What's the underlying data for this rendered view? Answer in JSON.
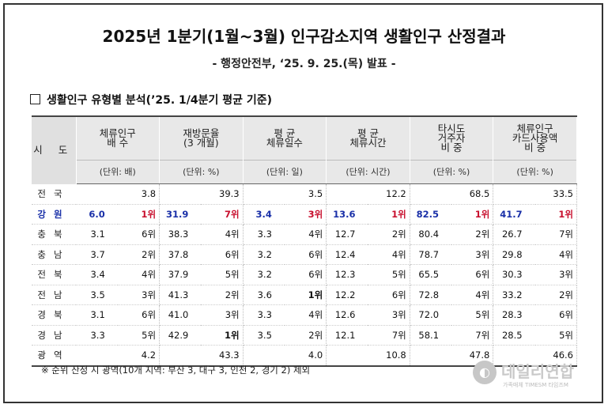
{
  "title": "2025년 1분기(1월~3월) 인구감소지역 생활인구 산정결과",
  "subtitle": "- 행정안전부, ‘25. 9. 25.(목) 발표 -",
  "section": "생활인구 유형별 분석(’25. 1/4분기 평균 기준)",
  "table": {
    "region_header": "시 도",
    "columns": [
      {
        "line1": "체류인구",
        "line2": "배 수",
        "unit": "(단위: 배)"
      },
      {
        "line1": "재방문율",
        "line2": "(3 개월)",
        "unit": "(단위: %)"
      },
      {
        "line1": "평 균",
        "line2": "체류일수",
        "unit": "(단위: 일)"
      },
      {
        "line1": "평 균",
        "line2": "체류시간",
        "unit": "(단위: 시간)"
      },
      {
        "line1": "타시도",
        "line2": "거주자",
        "line3": "비 중",
        "unit": "(단위: %)"
      },
      {
        "line1": "체류인구",
        "line2": "카드사용액",
        "line3": "비 중",
        "unit": "(단위: %)"
      }
    ],
    "rows": [
      {
        "region": "전국",
        "cells": [
          [
            "3.8",
            ""
          ],
          [
            "39.3",
            ""
          ],
          [
            "3.5",
            ""
          ],
          [
            "12.2",
            ""
          ],
          [
            "68.5",
            ""
          ],
          [
            "33.5",
            ""
          ]
        ]
      },
      {
        "region": "강원",
        "cells": [
          [
            "6.0",
            "1위"
          ],
          [
            "31.9",
            "7위"
          ],
          [
            "3.4",
            "3위"
          ],
          [
            "13.6",
            "1위"
          ],
          [
            "82.5",
            "1위"
          ],
          [
            "41.7",
            "1위"
          ]
        ]
      },
      {
        "region": "충북",
        "cells": [
          [
            "3.1",
            "6위"
          ],
          [
            "38.3",
            "4위"
          ],
          [
            "3.3",
            "4위"
          ],
          [
            "12.7",
            "2위"
          ],
          [
            "80.4",
            "2위"
          ],
          [
            "26.7",
            "7위"
          ]
        ]
      },
      {
        "region": "충남",
        "cells": [
          [
            "3.7",
            "2위"
          ],
          [
            "37.8",
            "6위"
          ],
          [
            "3.2",
            "6위"
          ],
          [
            "12.4",
            "4위"
          ],
          [
            "78.7",
            "3위"
          ],
          [
            "29.8",
            "4위"
          ]
        ]
      },
      {
        "region": "전북",
        "cells": [
          [
            "3.4",
            "4위"
          ],
          [
            "37.9",
            "5위"
          ],
          [
            "3.2",
            "6위"
          ],
          [
            "12.3",
            "5위"
          ],
          [
            "65.5",
            "6위"
          ],
          [
            "30.3",
            "3위"
          ]
        ]
      },
      {
        "region": "전남",
        "cells": [
          [
            "3.5",
            "3위"
          ],
          [
            "41.3",
            "2위"
          ],
          [
            "3.6",
            "1위"
          ],
          [
            "12.2",
            "6위"
          ],
          [
            "72.8",
            "4위"
          ],
          [
            "33.2",
            "2위"
          ]
        ]
      },
      {
        "region": "경북",
        "cells": [
          [
            "3.1",
            "6위"
          ],
          [
            "41.0",
            "3위"
          ],
          [
            "3.3",
            "4위"
          ],
          [
            "12.6",
            "3위"
          ],
          [
            "72.0",
            "5위"
          ],
          [
            "28.3",
            "6위"
          ]
        ]
      },
      {
        "region": "경남",
        "cells": [
          [
            "3.3",
            "5위"
          ],
          [
            "42.9",
            "1위"
          ],
          [
            "3.5",
            "2위"
          ],
          [
            "12.1",
            "7위"
          ],
          [
            "58.1",
            "7위"
          ],
          [
            "28.5",
            "5위"
          ]
        ]
      },
      {
        "region": "광역",
        "cells": [
          [
            "4.2",
            ""
          ],
          [
            "43.3",
            ""
          ],
          [
            "4.0",
            ""
          ],
          [
            "10.8",
            ""
          ],
          [
            "47.8",
            ""
          ],
          [
            "46.6",
            ""
          ]
        ]
      }
    ]
  },
  "note": "※ 순위 산정 시 광역(10개 지역: 부산 3, 대구 3, 인천 2, 경기 2) 제외",
  "logo": {
    "name": "데일리연합",
    "small": "가족매체 TIMESM 타임즈M",
    "icon": "globe-logo-icon"
  },
  "colors": {
    "highlight_region": "#1a30a8",
    "highlight_rank": "#c8102e"
  }
}
